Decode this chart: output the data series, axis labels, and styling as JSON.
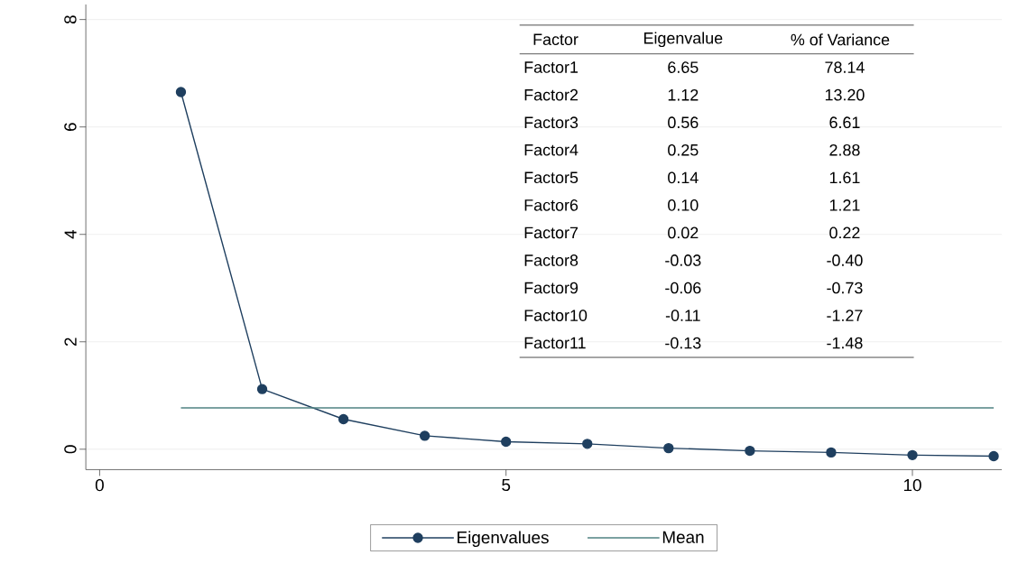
{
  "chart_data": {
    "type": "line",
    "x": [
      1,
      2,
      3,
      4,
      5,
      6,
      7,
      8,
      9,
      10,
      11
    ],
    "series": [
      {
        "name": "Eigenvalues",
        "color": "#1f3f5f",
        "marker": "circle",
        "values": [
          6.65,
          1.12,
          0.56,
          0.25,
          0.14,
          0.1,
          0.02,
          -0.03,
          -0.06,
          -0.11,
          -0.13
        ]
      },
      {
        "name": "Mean",
        "color": "#4f8282",
        "marker": "none",
        "x": [
          1,
          11
        ],
        "values": [
          0.77,
          0.77
        ]
      }
    ],
    "xlim": [
      -0.17,
      11.1
    ],
    "ylim": [
      -0.38,
      8.28
    ],
    "xticks": [
      0,
      5,
      10
    ],
    "yticks": [
      0,
      2,
      4,
      6,
      8
    ],
    "grid": "y",
    "legend": "bottom",
    "annotations": [
      "Factor",
      "Eigenvalue",
      "% of Variance",
      "Factor1",
      "Factor2",
      "Factor3",
      "Factor4",
      "Factor5",
      "Factor6",
      "Factor7",
      "Factor8",
      "Factor9",
      "Factor10",
      "Factor11",
      "6.65",
      "1.12",
      "0.56",
      "0.25",
      "0.14",
      "0.10",
      "0.02",
      "-0.03",
      "-0.06",
      "-0.11",
      "-0.13",
      "78.14",
      "13.20",
      "6.61",
      "2.88",
      "1.61",
      "1.21",
      "0.22",
      "-0.40",
      "-0.73",
      "-1.27",
      "-1.48"
    ]
  }
}
